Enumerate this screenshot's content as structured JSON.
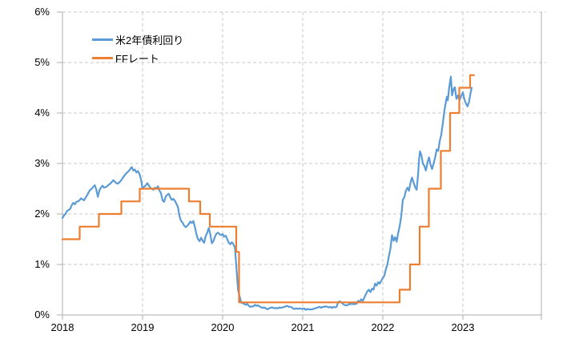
{
  "chart_data": {
    "type": "line",
    "title": "",
    "xlabel": "",
    "ylabel": "",
    "grid": {
      "show": true,
      "style": "dashed",
      "color": "#c9c9c9"
    },
    "axis_color": "#aeaeae",
    "x_axis": {
      "min": 2018,
      "max": 2023.98,
      "ticks": [
        2018,
        2019,
        2020,
        2021,
        2022,
        2023
      ],
      "tick_labels": [
        "2018",
        "2019",
        "2020",
        "2021",
        "2022",
        "2023"
      ]
    },
    "y_axis": {
      "min": 0,
      "max": 6,
      "ticks": [
        0,
        1,
        2,
        3,
        4,
        5,
        6
      ],
      "tick_labels": [
        "0%",
        "1%",
        "2%",
        "3%",
        "4%",
        "5%",
        "6%"
      ]
    },
    "legend": {
      "position": "top-left",
      "entries": [
        {
          "label": "米2年債利回り",
          "color": "#5B9BD5"
        },
        {
          "label": "FFレート",
          "color": "#ED7D31"
        }
      ]
    },
    "series": [
      {
        "name": "米2年債利回り",
        "type": "line",
        "color": "#5B9BD5",
        "points": [
          [
            2018.0,
            1.92
          ],
          [
            2018.019,
            1.97
          ],
          [
            2018.038,
            2.0
          ],
          [
            2018.058,
            2.06
          ],
          [
            2018.077,
            2.08
          ],
          [
            2018.096,
            2.1
          ],
          [
            2018.115,
            2.17
          ],
          [
            2018.135,
            2.22
          ],
          [
            2018.154,
            2.19
          ],
          [
            2018.173,
            2.24
          ],
          [
            2018.192,
            2.25
          ],
          [
            2018.212,
            2.27
          ],
          [
            2018.231,
            2.31
          ],
          [
            2018.25,
            2.29
          ],
          [
            2018.269,
            2.27
          ],
          [
            2018.288,
            2.32
          ],
          [
            2018.308,
            2.37
          ],
          [
            2018.327,
            2.43
          ],
          [
            2018.346,
            2.48
          ],
          [
            2018.365,
            2.5
          ],
          [
            2018.385,
            2.54
          ],
          [
            2018.404,
            2.57
          ],
          [
            2018.423,
            2.48
          ],
          [
            2018.442,
            2.34
          ],
          [
            2018.462,
            2.47
          ],
          [
            2018.481,
            2.52
          ],
          [
            2018.5,
            2.56
          ],
          [
            2018.519,
            2.52
          ],
          [
            2018.538,
            2.53
          ],
          [
            2018.558,
            2.55
          ],
          [
            2018.577,
            2.58
          ],
          [
            2018.596,
            2.6
          ],
          [
            2018.615,
            2.63
          ],
          [
            2018.635,
            2.67
          ],
          [
            2018.654,
            2.64
          ],
          [
            2018.673,
            2.61
          ],
          [
            2018.692,
            2.6
          ],
          [
            2018.712,
            2.63
          ],
          [
            2018.731,
            2.66
          ],
          [
            2018.75,
            2.71
          ],
          [
            2018.769,
            2.75
          ],
          [
            2018.788,
            2.79
          ],
          [
            2018.808,
            2.82
          ],
          [
            2018.827,
            2.85
          ],
          [
            2018.846,
            2.89
          ],
          [
            2018.865,
            2.93
          ],
          [
            2018.885,
            2.86
          ],
          [
            2018.904,
            2.88
          ],
          [
            2018.923,
            2.82
          ],
          [
            2018.942,
            2.85
          ],
          [
            2018.962,
            2.79
          ],
          [
            2018.981,
            2.68
          ],
          [
            2019.0,
            2.5
          ],
          [
            2019.019,
            2.54
          ],
          [
            2019.038,
            2.56
          ],
          [
            2019.058,
            2.61
          ],
          [
            2019.077,
            2.57
          ],
          [
            2019.096,
            2.52
          ],
          [
            2019.115,
            2.5
          ],
          [
            2019.135,
            2.48
          ],
          [
            2019.154,
            2.52
          ],
          [
            2019.173,
            2.5
          ],
          [
            2019.192,
            2.55
          ],
          [
            2019.212,
            2.46
          ],
          [
            2019.231,
            2.41
          ],
          [
            2019.25,
            2.27
          ],
          [
            2019.269,
            2.24
          ],
          [
            2019.288,
            2.34
          ],
          [
            2019.308,
            2.38
          ],
          [
            2019.327,
            2.4
          ],
          [
            2019.346,
            2.33
          ],
          [
            2019.365,
            2.28
          ],
          [
            2019.385,
            2.3
          ],
          [
            2019.404,
            2.26
          ],
          [
            2019.423,
            2.2
          ],
          [
            2019.442,
            2.14
          ],
          [
            2019.462,
            1.95
          ],
          [
            2019.481,
            1.86
          ],
          [
            2019.5,
            1.83
          ],
          [
            2019.519,
            1.77
          ],
          [
            2019.538,
            1.74
          ],
          [
            2019.558,
            1.76
          ],
          [
            2019.577,
            1.8
          ],
          [
            2019.596,
            1.85
          ],
          [
            2019.615,
            1.82
          ],
          [
            2019.635,
            1.86
          ],
          [
            2019.654,
            1.74
          ],
          [
            2019.673,
            1.6
          ],
          [
            2019.692,
            1.5
          ],
          [
            2019.712,
            1.46
          ],
          [
            2019.731,
            1.53
          ],
          [
            2019.75,
            1.47
          ],
          [
            2019.769,
            1.43
          ],
          [
            2019.788,
            1.56
          ],
          [
            2019.808,
            1.63
          ],
          [
            2019.827,
            1.72
          ],
          [
            2019.846,
            1.6
          ],
          [
            2019.865,
            1.42
          ],
          [
            2019.885,
            1.46
          ],
          [
            2019.904,
            1.55
          ],
          [
            2019.923,
            1.61
          ],
          [
            2019.942,
            1.63
          ],
          [
            2019.962,
            1.6
          ],
          [
            2019.981,
            1.58
          ],
          [
            2020.0,
            1.6
          ],
          [
            2020.019,
            1.55
          ],
          [
            2020.038,
            1.57
          ],
          [
            2020.058,
            1.5
          ],
          [
            2020.077,
            1.43
          ],
          [
            2020.096,
            1.4
          ],
          [
            2020.115,
            1.44
          ],
          [
            2020.135,
            1.4
          ],
          [
            2020.154,
            1.33
          ],
          [
            2020.173,
            0.92
          ],
          [
            2020.192,
            0.5
          ],
          [
            2020.212,
            0.37
          ],
          [
            2020.231,
            0.25
          ],
          [
            2020.25,
            0.23
          ],
          [
            2020.269,
            0.22
          ],
          [
            2020.288,
            0.2
          ],
          [
            2020.308,
            0.22
          ],
          [
            2020.327,
            0.18
          ],
          [
            2020.346,
            0.16
          ],
          [
            2020.365,
            0.17
          ],
          [
            2020.385,
            0.17
          ],
          [
            2020.404,
            0.2
          ],
          [
            2020.423,
            0.18
          ],
          [
            2020.442,
            0.19
          ],
          [
            2020.462,
            0.17
          ],
          [
            2020.481,
            0.15
          ],
          [
            2020.5,
            0.14
          ],
          [
            2020.519,
            0.15
          ],
          [
            2020.538,
            0.13
          ],
          [
            2020.558,
            0.11
          ],
          [
            2020.577,
            0.13
          ],
          [
            2020.596,
            0.14
          ],
          [
            2020.615,
            0.15
          ],
          [
            2020.635,
            0.14
          ],
          [
            2020.654,
            0.13
          ],
          [
            2020.673,
            0.14
          ],
          [
            2020.692,
            0.13
          ],
          [
            2020.712,
            0.15
          ],
          [
            2020.731,
            0.14
          ],
          [
            2020.75,
            0.15
          ],
          [
            2020.769,
            0.16
          ],
          [
            2020.788,
            0.17
          ],
          [
            2020.808,
            0.18
          ],
          [
            2020.827,
            0.16
          ],
          [
            2020.846,
            0.16
          ],
          [
            2020.865,
            0.15
          ],
          [
            2020.885,
            0.12
          ],
          [
            2020.904,
            0.12
          ],
          [
            2020.923,
            0.13
          ],
          [
            2020.942,
            0.12
          ],
          [
            2020.962,
            0.13
          ],
          [
            2020.981,
            0.12
          ],
          [
            2021.0,
            0.12
          ],
          [
            2021.019,
            0.13
          ],
          [
            2021.038,
            0.1
          ],
          [
            2021.058,
            0.12
          ],
          [
            2021.077,
            0.11
          ],
          [
            2021.096,
            0.11
          ],
          [
            2021.115,
            0.11
          ],
          [
            2021.135,
            0.12
          ],
          [
            2021.154,
            0.13
          ],
          [
            2021.173,
            0.14
          ],
          [
            2021.192,
            0.15
          ],
          [
            2021.212,
            0.16
          ],
          [
            2021.231,
            0.14
          ],
          [
            2021.25,
            0.16
          ],
          [
            2021.269,
            0.16
          ],
          [
            2021.288,
            0.17
          ],
          [
            2021.308,
            0.16
          ],
          [
            2021.327,
            0.15
          ],
          [
            2021.346,
            0.16
          ],
          [
            2021.365,
            0.14
          ],
          [
            2021.385,
            0.16
          ],
          [
            2021.404,
            0.15
          ],
          [
            2021.423,
            0.16
          ],
          [
            2021.442,
            0.25
          ],
          [
            2021.462,
            0.27
          ],
          [
            2021.481,
            0.25
          ],
          [
            2021.5,
            0.22
          ],
          [
            2021.519,
            0.2
          ],
          [
            2021.538,
            0.19
          ],
          [
            2021.558,
            0.19
          ],
          [
            2021.577,
            0.22
          ],
          [
            2021.596,
            0.21
          ],
          [
            2021.615,
            0.23
          ],
          [
            2021.635,
            0.21
          ],
          [
            2021.654,
            0.22
          ],
          [
            2021.673,
            0.22
          ],
          [
            2021.692,
            0.28
          ],
          [
            2021.712,
            0.26
          ],
          [
            2021.731,
            0.31
          ],
          [
            2021.75,
            0.28
          ],
          [
            2021.769,
            0.34
          ],
          [
            2021.788,
            0.41
          ],
          [
            2021.808,
            0.47
          ],
          [
            2021.827,
            0.5
          ],
          [
            2021.846,
            0.45
          ],
          [
            2021.865,
            0.52
          ],
          [
            2021.885,
            0.5
          ],
          [
            2021.904,
            0.62
          ],
          [
            2021.923,
            0.58
          ],
          [
            2021.942,
            0.65
          ],
          [
            2021.962,
            0.62
          ],
          [
            2021.981,
            0.68
          ],
          [
            2022.0,
            0.73
          ],
          [
            2022.019,
            0.78
          ],
          [
            2022.038,
            0.9
          ],
          [
            2022.058,
            1.01
          ],
          [
            2022.077,
            1.17
          ],
          [
            2022.096,
            1.32
          ],
          [
            2022.115,
            1.58
          ],
          [
            2022.135,
            1.47
          ],
          [
            2022.154,
            1.54
          ],
          [
            2022.173,
            1.45
          ],
          [
            2022.192,
            1.62
          ],
          [
            2022.212,
            1.77
          ],
          [
            2022.231,
            1.96
          ],
          [
            2022.25,
            2.28
          ],
          [
            2022.269,
            2.33
          ],
          [
            2022.288,
            2.46
          ],
          [
            2022.308,
            2.52
          ],
          [
            2022.327,
            2.46
          ],
          [
            2022.346,
            2.62
          ],
          [
            2022.365,
            2.72
          ],
          [
            2022.385,
            2.62
          ],
          [
            2022.404,
            2.53
          ],
          [
            2022.423,
            2.48
          ],
          [
            2022.442,
            2.81
          ],
          [
            2022.454,
            3.1
          ],
          [
            2022.465,
            3.24
          ],
          [
            2022.481,
            3.17
          ],
          [
            2022.5,
            3.0
          ],
          [
            2022.519,
            2.95
          ],
          [
            2022.538,
            2.86
          ],
          [
            2022.558,
            3.02
          ],
          [
            2022.577,
            3.12
          ],
          [
            2022.596,
            2.98
          ],
          [
            2022.615,
            2.89
          ],
          [
            2022.635,
            3.0
          ],
          [
            2022.654,
            3.12
          ],
          [
            2022.673,
            3.28
          ],
          [
            2022.692,
            3.25
          ],
          [
            2022.712,
            3.45
          ],
          [
            2022.731,
            3.58
          ],
          [
            2022.75,
            3.8
          ],
          [
            2022.769,
            4.05
          ],
          [
            2022.788,
            4.22
          ],
          [
            2022.8,
            4.32
          ],
          [
            2022.812,
            4.25
          ],
          [
            2022.827,
            4.48
          ],
          [
            2022.84,
            4.62
          ],
          [
            2022.85,
            4.72
          ],
          [
            2022.865,
            4.35
          ],
          [
            2022.885,
            4.48
          ],
          [
            2022.9,
            4.51
          ],
          [
            2022.919,
            4.28
          ],
          [
            2022.938,
            4.35
          ],
          [
            2022.958,
            4.25
          ],
          [
            2022.977,
            4.33
          ],
          [
            2023.0,
            4.41
          ],
          [
            2023.019,
            4.27
          ],
          [
            2023.038,
            4.19
          ],
          [
            2023.058,
            4.13
          ],
          [
            2023.077,
            4.22
          ],
          [
            2023.096,
            4.4
          ],
          [
            2023.11,
            4.5
          ]
        ]
      },
      {
        "name": "FFレート",
        "type": "step",
        "color": "#ED7D31",
        "x_end": 2023.14,
        "points": [
          [
            2018.0,
            1.5
          ],
          [
            2018.215,
            1.75
          ],
          [
            2018.455,
            2.0
          ],
          [
            2018.735,
            2.25
          ],
          [
            2018.965,
            2.5
          ],
          [
            2019.58,
            2.25
          ],
          [
            2019.72,
            2.0
          ],
          [
            2019.84,
            1.75
          ],
          [
            2020.17,
            1.25
          ],
          [
            2020.205,
            0.25
          ],
          [
            2022.21,
            0.5
          ],
          [
            2022.34,
            1.0
          ],
          [
            2022.46,
            1.75
          ],
          [
            2022.575,
            2.5
          ],
          [
            2022.725,
            3.25
          ],
          [
            2022.84,
            4.0
          ],
          [
            2022.955,
            4.5
          ],
          [
            2023.09,
            4.75
          ]
        ]
      }
    ]
  }
}
